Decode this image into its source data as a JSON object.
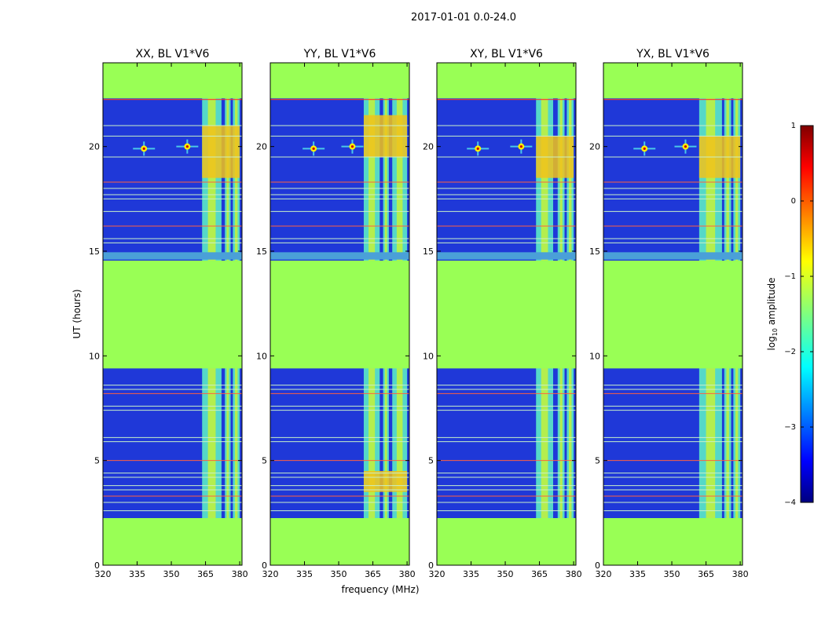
{
  "figure": {
    "suptitle": "2017-01-01 0.0-24.0",
    "shared_xlabel": "frequency (MHz)",
    "shared_ylabel": "UT (hours)"
  },
  "colorbar": {
    "label_main": "log",
    "label_sub": "10",
    "label_tail": " amplitude",
    "ticks": [
      1,
      0,
      -1,
      -2,
      -3,
      -4
    ],
    "tick_labels": [
      "1",
      "0",
      "−1",
      "−2",
      "−3",
      "−4"
    ],
    "range": [
      -4,
      1
    ],
    "colormap": "jet"
  },
  "colors": {
    "masked": "#99ff55",
    "background_low": "#1f38d8",
    "frame": "#000000"
  },
  "chart_data": [
    {
      "type": "heatmap",
      "title": "XX, BL V1*V6",
      "xlabel": "",
      "ylabel": "UT (hours)",
      "xlim": [
        320,
        381
      ],
      "ylim": [
        0,
        24
      ],
      "xticks": [
        320,
        335,
        350,
        365,
        380
      ],
      "yticks": [
        0,
        5,
        10,
        15,
        20
      ],
      "masked_bands_hours": [
        [
          0,
          2.25
        ],
        [
          9.4,
          14.55
        ],
        [
          22.3,
          24
        ]
      ],
      "rfi_bands_mhz": [
        [
          363.5,
          372
        ],
        [
          373.5,
          376
        ],
        [
          377,
          380
        ]
      ],
      "peak_hours": [
        [
          18.5,
          21.0
        ]
      ],
      "point_sources": [
        {
          "freq_mhz": 338,
          "ut": 19.9
        },
        {
          "freq_mhz": 357,
          "ut": 20.0
        }
      ]
    },
    {
      "type": "heatmap",
      "title": "YY, BL V1*V6",
      "xlabel": "frequency (MHz)",
      "ylabel": "",
      "xlim": [
        320,
        381
      ],
      "ylim": [
        0,
        24
      ],
      "xticks": [
        320,
        335,
        350,
        365,
        380
      ],
      "yticks": [
        0,
        5,
        10,
        15,
        20
      ],
      "masked_bands_hours": [
        [
          0,
          2.25
        ],
        [
          9.4,
          14.55
        ],
        [
          22.3,
          24
        ]
      ],
      "rfi_bands_mhz": [
        [
          361,
          368
        ],
        [
          369.5,
          372
        ],
        [
          373.5,
          380
        ]
      ],
      "peak_hours": [
        [
          3.5,
          4.5
        ],
        [
          19.5,
          21.5
        ]
      ],
      "point_sources": [
        {
          "freq_mhz": 339,
          "ut": 19.9
        },
        {
          "freq_mhz": 356,
          "ut": 20.0
        }
      ]
    },
    {
      "type": "heatmap",
      "title": "XY, BL V1*V6",
      "xlabel": "",
      "ylabel": "",
      "xlim": [
        320,
        381
      ],
      "ylim": [
        0,
        24
      ],
      "xticks": [
        320,
        335,
        350,
        365,
        380
      ],
      "yticks": [
        0,
        5,
        10,
        15,
        20
      ],
      "masked_bands_hours": [
        [
          0,
          2.25
        ],
        [
          9.4,
          14.55
        ],
        [
          22.3,
          24
        ]
      ],
      "rfi_bands_mhz": [
        [
          363.5,
          371
        ],
        [
          373,
          376
        ],
        [
          377,
          380
        ]
      ],
      "peak_hours": [
        [
          18.5,
          20.5
        ]
      ],
      "point_sources": [
        {
          "freq_mhz": 338,
          "ut": 19.9
        },
        {
          "freq_mhz": 357,
          "ut": 20.0
        }
      ]
    },
    {
      "type": "heatmap",
      "title": "YX, BL V1*V6",
      "xlabel": "",
      "ylabel": "",
      "xlim": [
        320,
        381
      ],
      "ylim": [
        0,
        24
      ],
      "xticks": [
        320,
        335,
        350,
        365,
        380
      ],
      "yticks": [
        0,
        5,
        10,
        15,
        20
      ],
      "masked_bands_hours": [
        [
          0,
          2.25
        ],
        [
          9.4,
          14.55
        ],
        [
          22.3,
          24
        ]
      ],
      "rfi_bands_mhz": [
        [
          362,
          372
        ],
        [
          373,
          376
        ],
        [
          377,
          380
        ]
      ],
      "peak_hours": [
        [
          18.5,
          20.5
        ]
      ],
      "point_sources": [
        {
          "freq_mhz": 338,
          "ut": 19.9
        },
        {
          "freq_mhz": 356,
          "ut": 20.0
        }
      ]
    }
  ]
}
